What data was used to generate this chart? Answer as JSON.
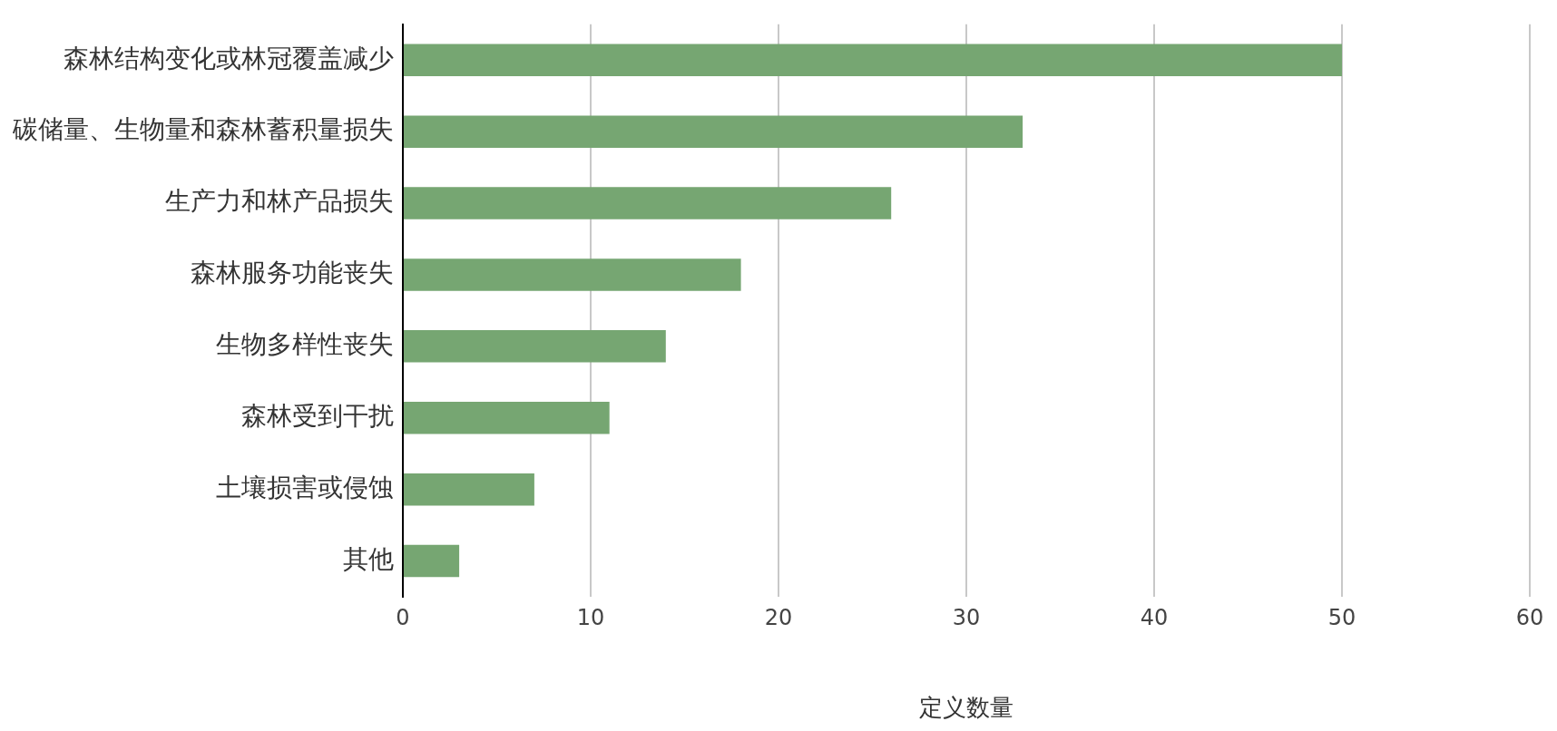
{
  "chart_data": {
    "type": "bar",
    "orientation": "horizontal",
    "xlabel": "定义数量",
    "categories": [
      "森林结构变化或林冠覆盖减少",
      "碳储量、生物量和森林蓄积量损失",
      "生产力和林产品损失",
      "森林服务功能丧失",
      "生物多样性丧失",
      "森林受到干扰",
      "土壤损害或侵蚀",
      "其他"
    ],
    "values": [
      50,
      33,
      26,
      18,
      14,
      11,
      7,
      3
    ],
    "color": "#76a672",
    "xlim": [
      0,
      60
    ],
    "xticks": [
      0,
      10,
      20,
      30,
      40,
      50,
      60
    ],
    "grid": "x",
    "legend": false
  }
}
